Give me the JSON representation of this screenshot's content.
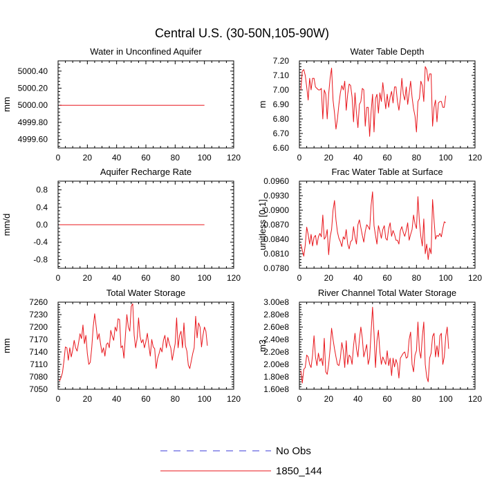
{
  "figure_title": "Central U.S. (30-50N,105-90W)",
  "legend": [
    {
      "label": "No Obs",
      "color": "#3a3ad8",
      "style": "dashed"
    },
    {
      "label": "1850_144",
      "color": "#e8141a",
      "style": "solid"
    }
  ],
  "chart_data": [
    {
      "type": "line",
      "title": "Water in Unconfined Aquifer",
      "xlabel": "",
      "ylabel": "mm",
      "xlim": [
        0,
        120
      ],
      "ylim": [
        4999.5,
        5000.52
      ],
      "xticks": [
        "0",
        "20",
        "40",
        "60",
        "80",
        "100",
        "120"
      ],
      "xtick_values": [
        0,
        20,
        40,
        60,
        80,
        100,
        120
      ],
      "yticks": [
        "4999.60",
        "4999.80",
        "5000.00",
        "5000.20",
        "5000.40"
      ],
      "ytick_values": [
        4999.6,
        4999.8,
        5000.0,
        5000.2,
        5000.4
      ],
      "series": [
        {
          "name": "1850_144",
          "x_start": 1,
          "x_step": 1,
          "values": [
            5000,
            5000,
            5000,
            5000,
            5000,
            5000,
            5000,
            5000,
            5000,
            5000,
            5000,
            5000,
            5000,
            5000,
            5000,
            5000,
            5000,
            5000,
            5000,
            5000,
            5000,
            5000,
            5000,
            5000,
            5000,
            5000,
            5000,
            5000,
            5000,
            5000,
            5000,
            5000,
            5000,
            5000,
            5000,
            5000,
            5000,
            5000,
            5000,
            5000,
            5000,
            5000,
            5000,
            5000,
            5000,
            5000,
            5000,
            5000,
            5000,
            5000,
            5000,
            5000,
            5000,
            5000,
            5000,
            5000,
            5000,
            5000,
            5000,
            5000,
            5000,
            5000,
            5000,
            5000,
            5000,
            5000,
            5000,
            5000,
            5000,
            5000,
            5000,
            5000,
            5000,
            5000,
            5000,
            5000,
            5000,
            5000,
            5000,
            5000,
            5000,
            5000,
            5000,
            5000,
            5000,
            5000,
            5000,
            5000,
            5000,
            5000,
            5000,
            5000,
            5000,
            5000,
            5000,
            5000,
            5000,
            5000,
            5000,
            5000
          ]
        }
      ]
    },
    {
      "type": "line",
      "title": "Water Table Depth",
      "xlabel": "",
      "ylabel": "m",
      "xlim": [
        0,
        120
      ],
      "ylim": [
        6.6,
        7.2
      ],
      "xticks": [
        "0",
        "20",
        "40",
        "60",
        "80",
        "100",
        "120"
      ],
      "xtick_values": [
        0,
        20,
        40,
        60,
        80,
        100,
        120
      ],
      "yticks": [
        "6.60",
        "6.70",
        "6.80",
        "6.90",
        "7.00",
        "7.10",
        "7.20"
      ],
      "ytick_values": [
        6.6,
        6.7,
        6.8,
        6.9,
        7.0,
        7.1,
        7.2
      ],
      "series": [
        {
          "name": "1850_144",
          "x_start": 1,
          "x_step": 1,
          "values": [
            7.0,
            7.13,
            7.14,
            7.1,
            7.02,
            6.93,
            7.08,
            7.0,
            7.08,
            7.08,
            7.02,
            7.01,
            7.0,
            7.0,
            7.01,
            6.8,
            7.0,
            6.97,
            6.8,
            6.97,
            7.08,
            7.15,
            6.93,
            6.84,
            6.73,
            6.8,
            6.9,
            6.98,
            7.03,
            7.0,
            7.06,
            6.86,
            6.97,
            7.04,
            7.03,
            6.95,
            6.78,
            6.98,
            6.84,
            6.74,
            6.9,
            6.92,
            7.01,
            7.0,
            6.75,
            6.88,
            6.88,
            6.68,
            6.85,
            6.97,
            6.71,
            6.94,
            6.97,
            6.84,
            6.98,
            6.92,
            7.05,
            6.96,
            6.87,
            6.97,
            6.88,
            6.95,
            6.99,
            6.91,
            7.02,
            7.02,
            6.92,
            6.86,
            6.94,
            7.08,
            6.97,
            6.93,
            7.02,
            6.9,
            6.98,
            7.06,
            6.95,
            6.87,
            6.82,
            6.71,
            6.92,
            6.94,
            7.06,
            7.03,
            6.92,
            7.16,
            7.14,
            7.06,
            7.11,
            7.11,
            6.75,
            6.88,
            6.93,
            6.78,
            6.91,
            6.92,
            6.92,
            6.88,
            6.88,
            6.96
          ]
        }
      ]
    },
    {
      "type": "line",
      "title": "Aquifer Recharge Rate",
      "xlabel": "",
      "ylabel": "mm/d",
      "xlim": [
        0,
        120
      ],
      "ylim": [
        -1.0,
        1.0
      ],
      "xticks": [
        "0",
        "20",
        "40",
        "60",
        "80",
        "100",
        "120"
      ],
      "xtick_values": [
        0,
        20,
        40,
        60,
        80,
        100,
        120
      ],
      "yticks": [
        "-0.8",
        "-0.4",
        "0.0",
        "0.4",
        "0.8"
      ],
      "ytick_values": [
        -0.8,
        -0.4,
        0.0,
        0.4,
        0.8
      ],
      "series": [
        {
          "name": "1850_144",
          "x_start": 1,
          "x_step": 1,
          "values": [
            0,
            0,
            0,
            0,
            0,
            0,
            0,
            0,
            0,
            0,
            0,
            0,
            0,
            0,
            0,
            0,
            0,
            0,
            0,
            0,
            0,
            0,
            0,
            0,
            0,
            0,
            0,
            0,
            0,
            0,
            0,
            0,
            0,
            0,
            0,
            0,
            0,
            0,
            0,
            0,
            0,
            0,
            0,
            0,
            0,
            0,
            0,
            0,
            0,
            0,
            0,
            0,
            0,
            0,
            0,
            0,
            0,
            0,
            0,
            0,
            0,
            0,
            0,
            0,
            0,
            0,
            0,
            0,
            0,
            0,
            0,
            0,
            0,
            0,
            0,
            0,
            0,
            0,
            0,
            0,
            0,
            0,
            0,
            0,
            0,
            0,
            0,
            0,
            0,
            0,
            0,
            0,
            0,
            0,
            0,
            0,
            0,
            0,
            0,
            0
          ]
        }
      ]
    },
    {
      "type": "line",
      "title": "Frac Water Table at Surface",
      "xlabel": "",
      "ylabel": "unitless [0-1]",
      "xlim": [
        0,
        120
      ],
      "ylim": [
        0.078,
        0.096
      ],
      "xticks": [
        "0",
        "20",
        "40",
        "60",
        "80",
        "100",
        "120"
      ],
      "xtick_values": [
        0,
        20,
        40,
        60,
        80,
        100,
        120
      ],
      "yticks": [
        "0.0780",
        "0.0810",
        "0.0840",
        "0.0870",
        "0.0900",
        "0.0930",
        "0.0960"
      ],
      "ytick_values": [
        0.078,
        0.081,
        0.084,
        0.087,
        0.09,
        0.093,
        0.096
      ],
      "series": [
        {
          "name": "1850_144",
          "x_start": 1,
          "x_step": 1,
          "values": [
            0.083,
            0.0817,
            0.0805,
            0.0828,
            0.0865,
            0.085,
            0.083,
            0.085,
            0.0826,
            0.0844,
            0.0848,
            0.0828,
            0.0845,
            0.0852,
            0.0845,
            0.089,
            0.084,
            0.0845,
            0.086,
            0.0808,
            0.0845,
            0.086,
            0.09,
            0.092,
            0.088,
            0.0855,
            0.0842,
            0.0835,
            0.0825,
            0.0845,
            0.084,
            0.086,
            0.083,
            0.082,
            0.0835,
            0.0838,
            0.0866,
            0.0845,
            0.083,
            0.087,
            0.088,
            0.0864,
            0.0848,
            0.0834,
            0.0856,
            0.087,
            0.0866,
            0.086,
            0.091,
            0.0938,
            0.0868,
            0.0848,
            0.083,
            0.0868,
            0.0856,
            0.0842,
            0.086,
            0.0868,
            0.0842,
            0.0838,
            0.0862,
            0.0874,
            0.0846,
            0.0858,
            0.085,
            0.0838,
            0.0838,
            0.083,
            0.0858,
            0.0866,
            0.0854,
            0.0846,
            0.0858,
            0.0874,
            0.0838,
            0.085,
            0.086,
            0.089,
            0.0872,
            0.0862,
            0.0928,
            0.0876,
            0.0846,
            0.0826,
            0.0882,
            0.081,
            0.083,
            0.0798,
            0.0822,
            0.081,
            0.0922,
            0.088,
            0.084,
            0.0848,
            0.0846,
            0.0852,
            0.0845,
            0.0862,
            0.0876,
            0.0874
          ]
        }
      ]
    },
    {
      "type": "line",
      "title": "Total Water Storage",
      "xlabel": "",
      "ylabel": "mm",
      "xlim": [
        0,
        120
      ],
      "ylim": [
        7050,
        7260
      ],
      "xticks": [
        "0",
        "20",
        "40",
        "60",
        "80",
        "100",
        "120"
      ],
      "xtick_values": [
        0,
        20,
        40,
        60,
        80,
        100,
        120
      ],
      "yticks": [
        "7050",
        "7080",
        "7110",
        "7140",
        "7170",
        "7200",
        "7230",
        "7260"
      ],
      "ytick_values": [
        7050,
        7080,
        7110,
        7140,
        7170,
        7200,
        7230,
        7260
      ],
      "series": [
        {
          "name": "1850_144",
          "x_start": 1,
          "x_step": 1,
          "values": [
            7070,
            7078,
            7090,
            7118,
            7152,
            7150,
            7120,
            7150,
            7128,
            7145,
            7168,
            7150,
            7142,
            7162,
            7184,
            7172,
            7205,
            7160,
            7180,
            7136,
            7110,
            7115,
            7150,
            7200,
            7232,
            7202,
            7170,
            7184,
            7160,
            7138,
            7150,
            7130,
            7158,
            7162,
            7150,
            7192,
            7178,
            7168,
            7200,
            7190,
            7220,
            7218,
            7150,
            7155,
            7125,
            7180,
            7230,
            7200,
            7190,
            7250,
            7256,
            7180,
            7150,
            7172,
            7222,
            7178,
            7162,
            7170,
            7150,
            7165,
            7185,
            7155,
            7130,
            7170,
            7152,
            7148,
            7100,
            7124,
            7136,
            7150,
            7140,
            7168,
            7180,
            7150,
            7175,
            7160,
            7150,
            7120,
            7140,
            7160,
            7222,
            7150,
            7180,
            7190,
            7150,
            7210,
            7155,
            7142,
            7108,
            7100,
            7118,
            7136,
            7150,
            7226,
            7174,
            7210,
            7200,
            7152,
            7180,
            7200,
            7190,
            7155
          ]
        }
      ]
    },
    {
      "type": "line",
      "title": "River Channel Total Water Storage",
      "xlabel": "",
      "ylabel": "m3",
      "xlim": [
        0,
        120
      ],
      "ylim": [
        160000000,
        300000000
      ],
      "xticks": [
        "0",
        "20",
        "40",
        "60",
        "80",
        "100",
        "120"
      ],
      "xtick_values": [
        0,
        20,
        40,
        60,
        80,
        100,
        120
      ],
      "yticks": [
        "1.60e8",
        "1.80e8",
        "2.00e8",
        "2.20e8",
        "2.40e8",
        "2.60e8",
        "2.80e8",
        "3.00e8"
      ],
      "ytick_values": [
        160000000,
        180000000,
        200000000,
        220000000,
        240000000,
        260000000,
        280000000,
        300000000
      ],
      "series": [
        {
          "name": "1850_144",
          "x_start": 1,
          "x_step": 1,
          "values": [
            190000000,
            170000000,
            192000000,
            195000000,
            215000000,
            212000000,
            200000000,
            195000000,
            215000000,
            246000000,
            212000000,
            198000000,
            218000000,
            205000000,
            210000000,
            198000000,
            242000000,
            188000000,
            184000000,
            200000000,
            225000000,
            258000000,
            240000000,
            225000000,
            212000000,
            200000000,
            198000000,
            210000000,
            235000000,
            222000000,
            195000000,
            238000000,
            200000000,
            215000000,
            212000000,
            200000000,
            230000000,
            250000000,
            225000000,
            212000000,
            240000000,
            260000000,
            242000000,
            212000000,
            222000000,
            232000000,
            200000000,
            210000000,
            252000000,
            292000000,
            250000000,
            195000000,
            238000000,
            255000000,
            220000000,
            200000000,
            212000000,
            206000000,
            200000000,
            222000000,
            198000000,
            210000000,
            182000000,
            210000000,
            196000000,
            208000000,
            200000000,
            178000000,
            210000000,
            214000000,
            218000000,
            220000000,
            210000000,
            212000000,
            240000000,
            252000000,
            200000000,
            188000000,
            215000000,
            222000000,
            268000000,
            222000000,
            210000000,
            245000000,
            268000000,
            200000000,
            180000000,
            172000000,
            210000000,
            218000000,
            245000000,
            250000000,
            212000000,
            230000000,
            212000000,
            246000000,
            250000000,
            200000000,
            212000000,
            245000000,
            260000000,
            225000000
          ]
        }
      ]
    }
  ]
}
